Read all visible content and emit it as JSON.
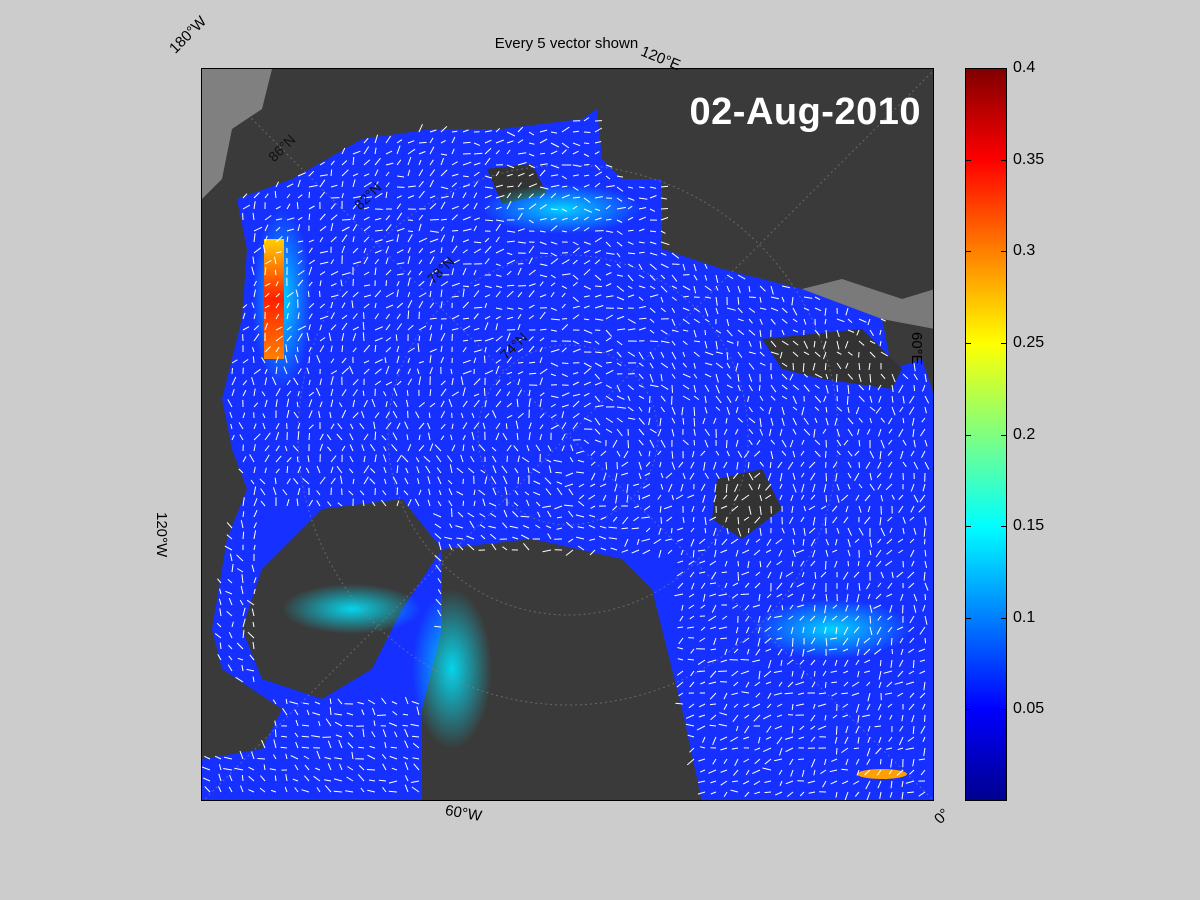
{
  "title": "Every 5 vector shown",
  "date": "02-Aug-2010",
  "longitude_labels": [
    "180°W",
    "120°E",
    "60°E",
    "0°",
    "60°W",
    "120°W"
  ],
  "latitude_labels": [
    "86°N",
    "82°N",
    "78°N",
    "74°N"
  ],
  "colorbar": {
    "min": 0,
    "max": 0.4,
    "ticks": [
      0.05,
      0.1,
      0.15,
      0.2,
      0.25,
      0.3,
      0.35,
      0.4
    ],
    "tick_labels": [
      "0.05",
      "0.1",
      "0.15",
      "0.2",
      "0.25",
      "0.3",
      "0.35",
      "0.4"
    ],
    "colormap": "jet"
  },
  "colors": {
    "background": "#cccccc",
    "land": "#3a3a3a",
    "ice_field": "#1530ff",
    "vectors": "#ffffff"
  }
}
